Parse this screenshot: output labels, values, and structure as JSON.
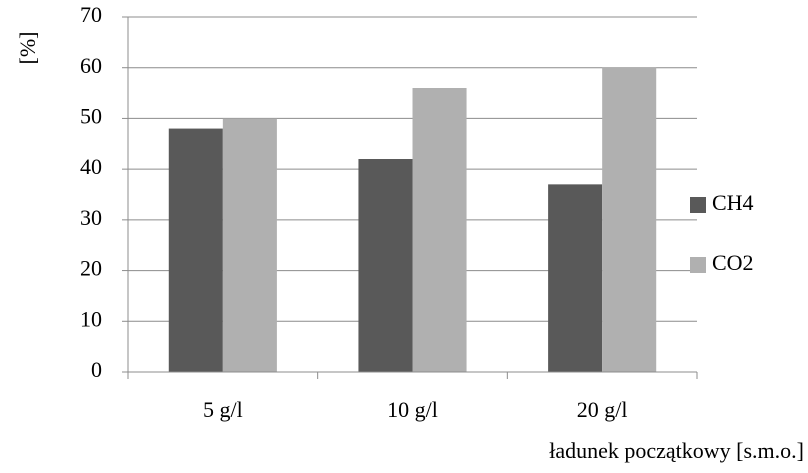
{
  "chart_data": {
    "type": "bar",
    "x_label": "ładunek początkowy [s.m.o.]",
    "y_label": "[%]",
    "categories": [
      "5 g/l",
      "10 g/l",
      "20 g/l"
    ],
    "series": [
      {
        "name": "CH4",
        "color": "#595959",
        "values": [
          48,
          42,
          37
        ]
      },
      {
        "name": "CO2",
        "color": "#b0b0b0",
        "values": [
          50,
          56,
          60
        ]
      }
    ],
    "ylim": [
      0,
      70
    ],
    "yticks": [
      0,
      10,
      20,
      30,
      40,
      50,
      60,
      70
    ],
    "grid": true,
    "legend": "right"
  }
}
